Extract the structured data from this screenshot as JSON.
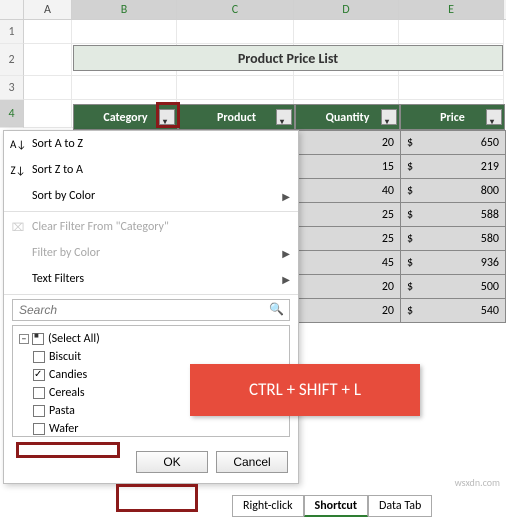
{
  "columns": {
    "A": "A",
    "B": "B",
    "C": "C",
    "D": "D",
    "E": "E"
  },
  "rows": [
    "1",
    "2",
    "3",
    "4"
  ],
  "title": "Product Price List",
  "headers": {
    "category": "Category",
    "product": "Product",
    "quantity": "Quantity",
    "price": "Price"
  },
  "data": [
    {
      "product": "",
      "qty": "20",
      "price": "650"
    },
    {
      "product": "er",
      "qty": "15",
      "price": "219"
    },
    {
      "product": "ate",
      "qty": "40",
      "price": "800"
    },
    {
      "product": "s",
      "qty": "25",
      "price": "588"
    },
    {
      "product": "ies",
      "qty": "25",
      "price": "580"
    },
    {
      "product": "",
      "qty": "45",
      "price": "936"
    },
    {
      "product": "",
      "qty": "20",
      "price": "500"
    },
    {
      "product": "",
      "qty": "20",
      "price": "540"
    }
  ],
  "currency": "$",
  "menu": {
    "sortAZ": "Sort A to Z",
    "sortZA": "Sort Z to A",
    "sortColor": "Sort by Color",
    "clearFilter": "Clear Filter From \"Category\"",
    "filterColor": "Filter by Color",
    "textFilters": "Text Filters",
    "search": "Search",
    "items": {
      "selectAll": "(Select All)",
      "biscuit": "Biscuit",
      "candies": "Candies",
      "cereals": "Cereals",
      "pasta": "Pasta",
      "wafer": "Wafer"
    },
    "ok": "OK",
    "cancel": "Cancel"
  },
  "shortcut": "CTRL + SHIFT + L",
  "tabs": {
    "rightClick": "Right-click",
    "shortcut": "Shortcut",
    "dataTab": "Data Tab"
  },
  "watermark": "wsxdn.com",
  "colors": {
    "headerBg": "#3b6a43",
    "titleBg": "#e2eae2",
    "cellBg": "#d9d9d9",
    "badge": "#e74c3c",
    "redBox": "#8b1a1a"
  }
}
